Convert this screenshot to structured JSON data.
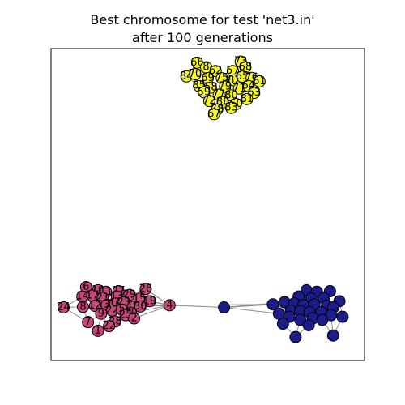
{
  "chart_data": {
    "type": "network",
    "title_line1": "Best chromosome for test 'net3.in'",
    "title_line2": "after 100 generations",
    "xlim": [
      0,
      1
    ],
    "ylim": [
      0,
      1
    ],
    "clusters": [
      {
        "color": "#f5f52a",
        "node_count": 30
      },
      {
        "color": "#c8467a",
        "node_count": 31
      },
      {
        "color": "#1c1c8a",
        "node_count": 30
      }
    ],
    "nodes": [
      {
        "label": "66",
        "cluster": 0,
        "x": 0.466,
        "y": 0.955
      },
      {
        "label": "8",
        "cluster": 0,
        "x": 0.495,
        "y": 0.94
      },
      {
        "label": "73",
        "cluster": 0,
        "x": 0.605,
        "y": 0.958
      },
      {
        "label": "68",
        "cluster": 0,
        "x": 0.62,
        "y": 0.94
      },
      {
        "label": "84",
        "cluster": 0,
        "x": 0.432,
        "y": 0.911
      },
      {
        "label": "70",
        "cluster": 0,
        "x": 0.46,
        "y": 0.918
      },
      {
        "label": "62",
        "cluster": 0,
        "x": 0.525,
        "y": 0.928
      },
      {
        "label": "57",
        "cluster": 0,
        "x": 0.58,
        "y": 0.928
      },
      {
        "label": "69",
        "cluster": 0,
        "x": 0.5,
        "y": 0.905
      },
      {
        "label": "75",
        "cluster": 0,
        "x": 0.545,
        "y": 0.905
      },
      {
        "label": "82",
        "cluster": 0,
        "x": 0.585,
        "y": 0.898
      },
      {
        "label": "65",
        "cluster": 0,
        "x": 0.61,
        "y": 0.91
      },
      {
        "label": "76",
        "cluster": 0,
        "x": 0.64,
        "y": 0.906
      },
      {
        "label": "61",
        "cluster": 0,
        "x": 0.665,
        "y": 0.895
      },
      {
        "label": "85",
        "cluster": 0,
        "x": 0.472,
        "y": 0.88
      },
      {
        "label": "58",
        "cluster": 0,
        "x": 0.51,
        "y": 0.875
      },
      {
        "label": "79",
        "cluster": 0,
        "x": 0.555,
        "y": 0.878
      },
      {
        "label": "71",
        "cluster": 0,
        "x": 0.6,
        "y": 0.872
      },
      {
        "label": "64",
        "cluster": 0,
        "x": 0.63,
        "y": 0.88
      },
      {
        "label": "59",
        "cluster": 0,
        "x": 0.488,
        "y": 0.86
      },
      {
        "label": "77",
        "cluster": 0,
        "x": 0.535,
        "y": 0.852
      },
      {
        "label": "80",
        "cluster": 0,
        "x": 0.575,
        "y": 0.85
      },
      {
        "label": "63",
        "cluster": 0,
        "x": 0.648,
        "y": 0.858
      },
      {
        "label": "72",
        "cluster": 0,
        "x": 0.505,
        "y": 0.832
      },
      {
        "label": "86",
        "cluster": 0,
        "x": 0.548,
        "y": 0.828
      },
      {
        "label": "60",
        "cluster": 0,
        "x": 0.59,
        "y": 0.822
      },
      {
        "label": "81",
        "cluster": 0,
        "x": 0.625,
        "y": 0.838
      },
      {
        "label": "83",
        "cluster": 0,
        "x": 0.575,
        "y": 0.81
      },
      {
        "label": "78",
        "cluster": 0,
        "x": 0.53,
        "y": 0.805
      },
      {
        "label": "67",
        "cluster": 0,
        "x": 0.52,
        "y": 0.79
      },
      {
        "label": "6",
        "cluster": 1,
        "x": 0.112,
        "y": 0.235
      },
      {
        "label": "10",
        "cluster": 1,
        "x": 0.15,
        "y": 0.225
      },
      {
        "label": "11",
        "cluster": 1,
        "x": 0.175,
        "y": 0.22
      },
      {
        "label": "27",
        "cluster": 1,
        "x": 0.215,
        "y": 0.222
      },
      {
        "label": "26",
        "cluster": 1,
        "x": 0.302,
        "y": 0.229
      },
      {
        "label": "14",
        "cluster": 1,
        "x": 0.1,
        "y": 0.205
      },
      {
        "label": "17",
        "cluster": 1,
        "x": 0.132,
        "y": 0.208
      },
      {
        "label": "21",
        "cluster": 1,
        "x": 0.165,
        "y": 0.2
      },
      {
        "label": "13",
        "cluster": 1,
        "x": 0.21,
        "y": 0.205
      },
      {
        "label": "29",
        "cluster": 1,
        "x": 0.25,
        "y": 0.21
      },
      {
        "label": "19",
        "cluster": 1,
        "x": 0.315,
        "y": 0.19
      },
      {
        "label": "15",
        "cluster": 1,
        "x": 0.282,
        "y": 0.198
      },
      {
        "label": "24",
        "cluster": 1,
        "x": 0.04,
        "y": 0.17
      },
      {
        "label": "8",
        "cluster": 1,
        "x": 0.102,
        "y": 0.172
      },
      {
        "label": "12",
        "cluster": 1,
        "x": 0.14,
        "y": 0.175
      },
      {
        "label": "3",
        "cluster": 1,
        "x": 0.178,
        "y": 0.178
      },
      {
        "label": "16",
        "cluster": 1,
        "x": 0.205,
        "y": 0.182
      },
      {
        "label": "23",
        "cluster": 1,
        "x": 0.232,
        "y": 0.186
      },
      {
        "label": "18",
        "cluster": 1,
        "x": 0.262,
        "y": 0.172
      },
      {
        "label": "30",
        "cluster": 1,
        "x": 0.285,
        "y": 0.173
      },
      {
        "label": "9",
        "cluster": 1,
        "x": 0.16,
        "y": 0.15
      },
      {
        "label": "22",
        "cluster": 1,
        "x": 0.195,
        "y": 0.16
      },
      {
        "label": "5",
        "cluster": 1,
        "x": 0.226,
        "y": 0.163
      },
      {
        "label": "20",
        "cluster": 1,
        "x": 0.255,
        "y": 0.152
      },
      {
        "label": "25",
        "cluster": 1,
        "x": 0.238,
        "y": 0.145
      },
      {
        "label": "7",
        "cluster": 1,
        "x": 0.118,
        "y": 0.123
      },
      {
        "label": "2",
        "cluster": 1,
        "x": 0.265,
        "y": 0.135
      },
      {
        "label": "28",
        "cluster": 1,
        "x": 0.205,
        "y": 0.125
      },
      {
        "label": "1",
        "cluster": 1,
        "x": 0.15,
        "y": 0.095
      },
      {
        "label": "22",
        "cluster": 1,
        "x": 0.185,
        "y": 0.11
      },
      {
        "label": "4",
        "cluster": 1,
        "x": 0.378,
        "y": 0.177
      },
      {
        "label": "",
        "cluster": 2,
        "x": 0.552,
        "y": 0.17
      },
      {
        "label": "",
        "cluster": 2,
        "x": 0.708,
        "y": 0.18
      },
      {
        "label": "",
        "cluster": 2,
        "x": 0.815,
        "y": 0.225
      },
      {
        "label": "",
        "cluster": 2,
        "x": 0.848,
        "y": 0.22
      },
      {
        "label": "",
        "cluster": 2,
        "x": 0.89,
        "y": 0.222
      },
      {
        "label": "",
        "cluster": 2,
        "x": 0.79,
        "y": 0.205
      },
      {
        "label": "",
        "cluster": 2,
        "x": 0.83,
        "y": 0.198
      },
      {
        "label": "",
        "cluster": 2,
        "x": 0.87,
        "y": 0.2
      },
      {
        "label": "",
        "cluster": 2,
        "x": 0.92,
        "y": 0.19
      },
      {
        "label": "",
        "cluster": 2,
        "x": 0.745,
        "y": 0.187
      },
      {
        "label": "",
        "cluster": 2,
        "x": 0.776,
        "y": 0.183
      },
      {
        "label": "",
        "cluster": 2,
        "x": 0.805,
        "y": 0.178
      },
      {
        "label": "",
        "cluster": 2,
        "x": 0.84,
        "y": 0.18
      },
      {
        "label": "",
        "cluster": 2,
        "x": 0.88,
        "y": 0.175
      },
      {
        "label": "",
        "cluster": 2,
        "x": 0.9,
        "y": 0.17
      },
      {
        "label": "",
        "cluster": 2,
        "x": 0.765,
        "y": 0.16
      },
      {
        "label": "",
        "cluster": 2,
        "x": 0.795,
        "y": 0.158
      },
      {
        "label": "",
        "cluster": 2,
        "x": 0.825,
        "y": 0.155
      },
      {
        "label": "",
        "cluster": 2,
        "x": 0.862,
        "y": 0.155
      },
      {
        "label": "",
        "cluster": 2,
        "x": 0.893,
        "y": 0.145
      },
      {
        "label": "",
        "cluster": 2,
        "x": 0.93,
        "y": 0.14
      },
      {
        "label": "",
        "cluster": 2,
        "x": 0.727,
        "y": 0.15
      },
      {
        "label": "",
        "cluster": 2,
        "x": 0.76,
        "y": 0.14
      },
      {
        "label": "",
        "cluster": 2,
        "x": 0.795,
        "y": 0.13
      },
      {
        "label": "",
        "cluster": 2,
        "x": 0.835,
        "y": 0.135
      },
      {
        "label": "",
        "cluster": 2,
        "x": 0.865,
        "y": 0.13
      },
      {
        "label": "",
        "cluster": 2,
        "x": 0.74,
        "y": 0.118
      },
      {
        "label": "",
        "cluster": 2,
        "x": 0.822,
        "y": 0.113
      },
      {
        "label": "",
        "cluster": 2,
        "x": 0.78,
        "y": 0.075
      },
      {
        "label": "",
        "cluster": 2,
        "x": 0.9,
        "y": 0.08
      }
    ]
  }
}
